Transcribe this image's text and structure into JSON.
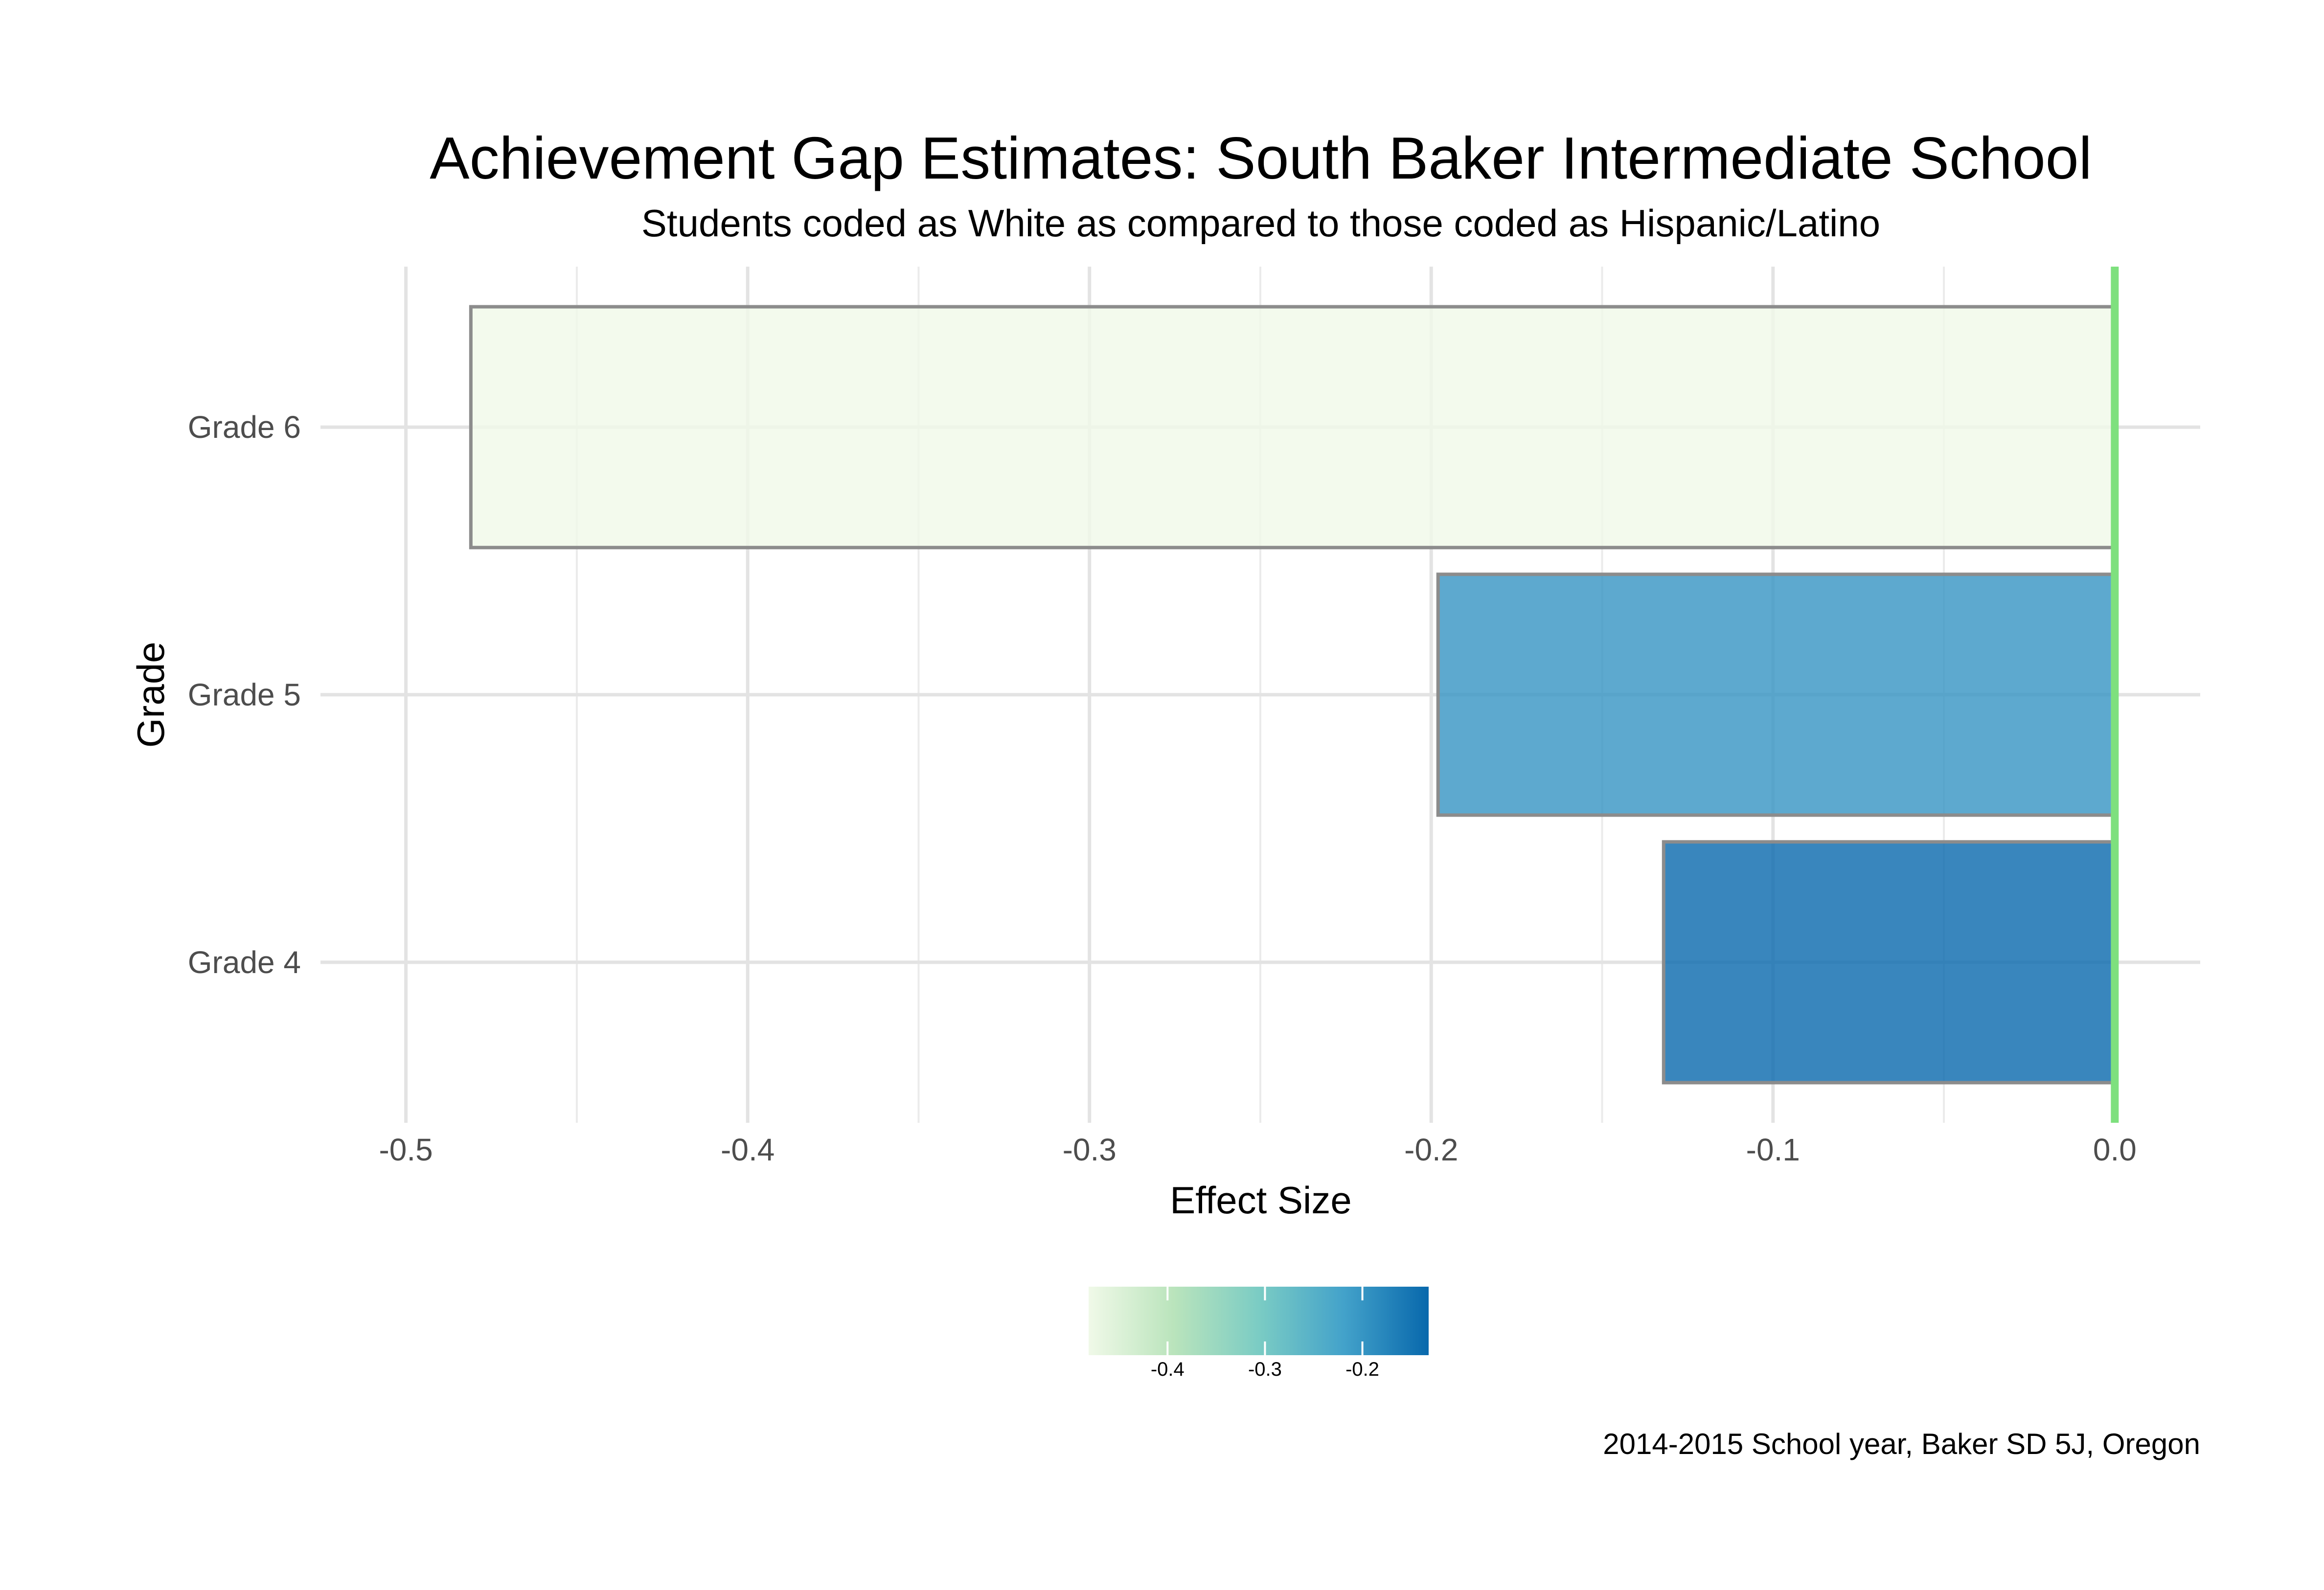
{
  "chart_data": {
    "type": "bar",
    "orientation": "horizontal",
    "title": "Achievement Gap Estimates: South Baker Intermediate School",
    "subtitle": "Students coded as White as compared to those coded as Hispanic/Latino",
    "xlabel": "Effect Size",
    "ylabel": "Grade",
    "caption": "2014-2015 School year, Baker SD 5J, Oregon",
    "categories": [
      "Grade 4",
      "Grade 5",
      "Grade 6"
    ],
    "values": [
      -0.132,
      -0.198,
      -0.481
    ],
    "xlim": [
      -0.525,
      0.025
    ],
    "x_ticks": [
      -0.5,
      -0.4,
      -0.3,
      -0.2,
      -0.1,
      0.0
    ],
    "x_tick_labels": [
      "-0.5",
      "-0.4",
      "-0.3",
      "-0.2",
      "-0.1",
      "0.0"
    ],
    "grid": true,
    "reference_line": {
      "x": 0.0,
      "color": "#7ee07e"
    },
    "bar_outline_color": "#8c8c8c",
    "legend": {
      "type": "colorbar",
      "position": "bottom",
      "range": [
        -0.481,
        -0.132
      ],
      "ticks": [
        -0.4,
        -0.3,
        -0.2
      ],
      "tick_labels": [
        "-0.4",
        "-0.3",
        "-0.2"
      ],
      "colors": [
        "#f0f9e8",
        "#bae4bc",
        "#7bccc4",
        "#43a2ca",
        "#0868ac"
      ]
    }
  }
}
